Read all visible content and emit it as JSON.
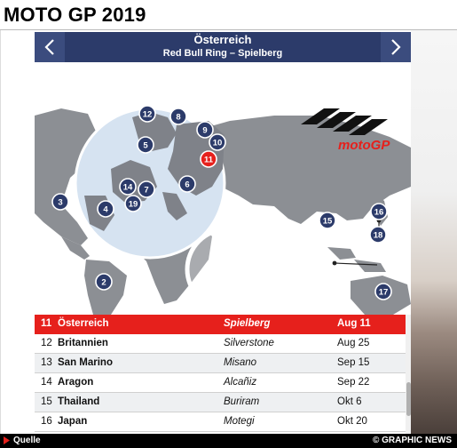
{
  "page": {
    "headline": "MOTO GP 2019"
  },
  "header": {
    "country": "Österreich",
    "circuit": "Red Bull Ring – Spielberg",
    "prev_icon": "chevron-left-icon",
    "next_icon": "chevron-right-icon"
  },
  "map": {
    "logo_text": "motoGP",
    "markers": [
      "2",
      "3",
      "4",
      "5",
      "6",
      "7",
      "8",
      "9",
      "10",
      "11",
      "12",
      "14",
      "15",
      "16",
      "17",
      "18",
      "19"
    ],
    "active_marker": "11",
    "land_color": "#8c8f94",
    "marker_color": "#2c3b6a",
    "active_marker_color": "#e6201c"
  },
  "races": [
    {
      "num": "11",
      "name": "Österreich",
      "circuit": "Spielberg",
      "date": "Aug 11",
      "active": true
    },
    {
      "num": "12",
      "name": "Britannien",
      "circuit": "Silverstone",
      "date": "Aug 25",
      "active": false
    },
    {
      "num": "13",
      "name": "San Marino",
      "circuit": "Misano",
      "date": "Sep 15",
      "active": false
    },
    {
      "num": "14",
      "name": "Aragon",
      "circuit": "Alcañiz",
      "date": "Sep 22",
      "active": false
    },
    {
      "num": "15",
      "name": "Thailand",
      "circuit": "Buriram",
      "date": "Okt 6",
      "active": false
    },
    {
      "num": "16",
      "name": "Japan",
      "circuit": "Motegi",
      "date": "Okt 20",
      "active": false
    }
  ],
  "footer": {
    "source_label": "Quelle",
    "credit": "© GRAPHIC NEWS"
  },
  "colors": {
    "header_bg": "#2c3b6a",
    "active_row": "#e6201c"
  }
}
